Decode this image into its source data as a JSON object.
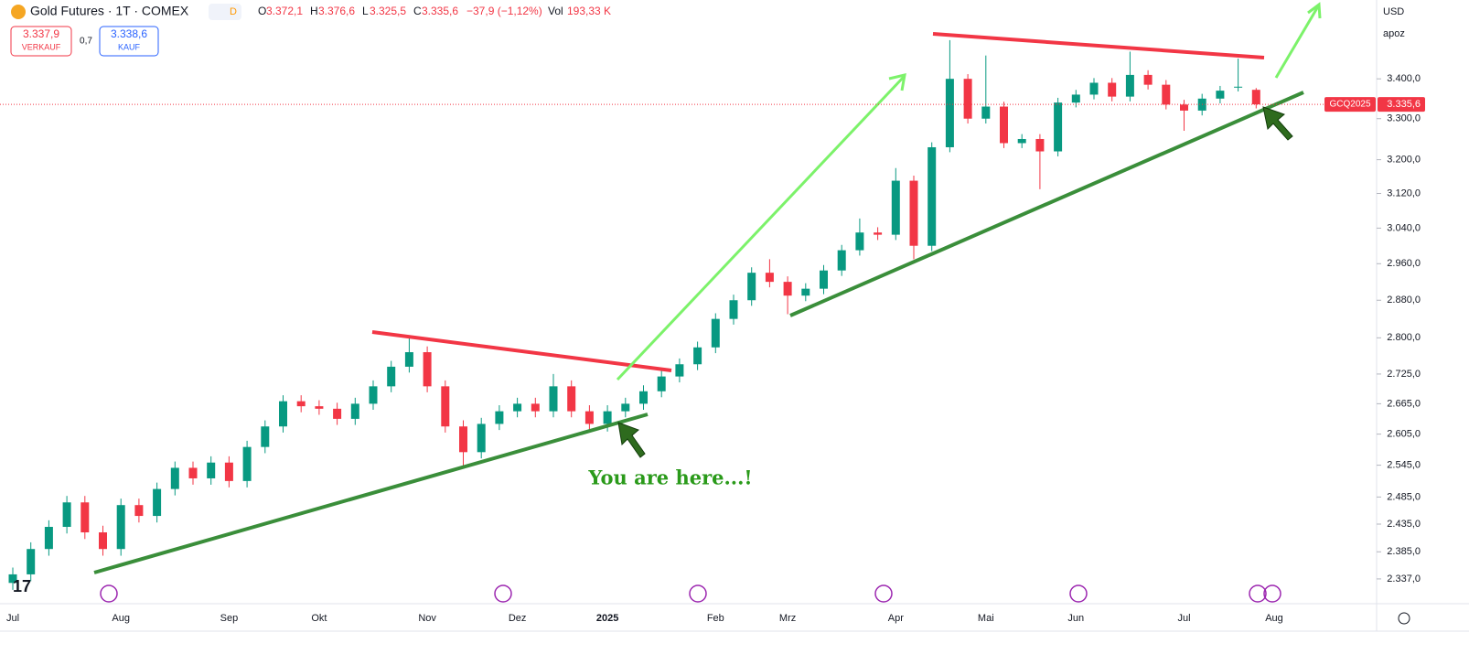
{
  "header": {
    "title": "Gold Futures · 1T · COMEX",
    "badge": "D",
    "o_label": "O",
    "o": "3.372,1",
    "h_label": "H",
    "h": "3.376,6",
    "l_label": "L",
    "l": "3.325,5",
    "c_label": "C",
    "c": "3.335,6",
    "change": "−37,9 (−1,12%)",
    "vol_label": "Vol",
    "vol": "193,33 K",
    "sell_price": "3.337,9",
    "sell_label": "VERKAUF",
    "spread": "0,7",
    "buy_price": "3.338,6",
    "buy_label": "KAUF",
    "currency": "USD",
    "scale_mode": "apoz",
    "symbol_tag": "GCQ2025",
    "last_price": "3.335,6"
  },
  "annotation": "You are here...!",
  "chart_data": {
    "type": "candlestick",
    "log": true,
    "up_color": "#089981",
    "down_color": "#f23645",
    "categories": [
      "Jul",
      null,
      null,
      null,
      null,
      null,
      "Aug",
      null,
      null,
      null,
      null,
      null,
      "Sep",
      null,
      null,
      null,
      null,
      "Okt",
      null,
      null,
      null,
      null,
      null,
      "Nov",
      null,
      null,
      null,
      null,
      "Dez",
      null,
      null,
      null,
      null,
      "2025",
      null,
      null,
      null,
      null,
      null,
      "Feb",
      null,
      null,
      null,
      "Mrz",
      null,
      null,
      null,
      null,
      null,
      "Apr",
      null,
      null,
      null,
      null,
      "Mai",
      null,
      null,
      null,
      null,
      "Jun",
      null,
      null,
      null,
      null,
      null,
      "Jul",
      null,
      null,
      null,
      null,
      "Aug"
    ],
    "open": [
      2330,
      2345,
      2390,
      2430,
      2475,
      2420,
      2390,
      2470,
      2450,
      2500,
      2540,
      2520,
      2550,
      2515,
      2580,
      2620,
      2670,
      2660,
      2655,
      2635,
      2665,
      2700,
      2740,
      2770,
      2700,
      2620,
      2570,
      2625,
      2650,
      2665,
      2650,
      2700,
      2650,
      2625,
      2650,
      2665,
      2690,
      2720,
      2745,
      2780,
      2840,
      2880,
      2940,
      2920,
      2890,
      2905,
      2945,
      2990,
      3030,
      3025,
      3150,
      3000,
      3230,
      3400,
      3300,
      3330,
      3240,
      3250,
      3220,
      3340,
      3360,
      3390,
      3355,
      3410,
      3385,
      3335,
      3320,
      3350,
      3380,
      3372.1,
      null
    ],
    "high": [
      2357,
      2402,
      2442,
      2487,
      2487,
      2432,
      2482,
      2482,
      2512,
      2552,
      2552,
      2562,
      2562,
      2592,
      2632,
      2682,
      2682,
      2672,
      2667,
      2677,
      2712,
      2752,
      2800,
      2782,
      2712,
      2632,
      2637,
      2662,
      2677,
      2677,
      2725,
      2712,
      2662,
      2662,
      2677,
      2702,
      2732,
      2757,
      2792,
      2852,
      2892,
      2952,
      2970,
      2932,
      2917,
      2957,
      3002,
      3062,
      3042,
      3180,
      3162,
      3242,
      3500,
      3412,
      3460,
      3342,
      3262,
      3262,
      3352,
      3372,
      3402,
      3402,
      3470,
      3422,
      3397,
      3347,
      3362,
      3382,
      3452,
      3376.6,
      null
    ],
    "low": [
      2318,
      2333,
      2378,
      2418,
      2408,
      2378,
      2378,
      2438,
      2438,
      2488,
      2508,
      2508,
      2503,
      2503,
      2568,
      2608,
      2648,
      2643,
      2623,
      2623,
      2653,
      2688,
      2728,
      2688,
      2608,
      2540,
      2558,
      2613,
      2638,
      2638,
      2638,
      2638,
      2613,
      2610,
      2638,
      2653,
      2678,
      2708,
      2733,
      2768,
      2828,
      2868,
      2908,
      2850,
      2878,
      2893,
      2933,
      2978,
      3013,
      3013,
      2970,
      2988,
      3218,
      3288,
      3288,
      3228,
      3228,
      3130,
      3208,
      3328,
      3348,
      3343,
      3343,
      3373,
      3323,
      3270,
      3308,
      3338,
      3368,
      3325.5,
      null
    ],
    "close": [
      2345,
      2390,
      2430,
      2475,
      2420,
      2390,
      2470,
      2450,
      2500,
      2540,
      2520,
      2550,
      2515,
      2580,
      2620,
      2670,
      2660,
      2655,
      2635,
      2665,
      2700,
      2740,
      2770,
      2700,
      2620,
      2570,
      2625,
      2650,
      2665,
      2650,
      2700,
      2650,
      2625,
      2650,
      2665,
      2690,
      2720,
      2745,
      2780,
      2840,
      2880,
      2940,
      2920,
      2890,
      2905,
      2945,
      2990,
      3030,
      3025,
      3150,
      3000,
      3230,
      3400,
      3300,
      3330,
      3240,
      3250,
      3220,
      3340,
      3360,
      3390,
      3355,
      3410,
      3385,
      3335,
      3320,
      3350,
      3370,
      3380,
      3335.6,
      null
    ],
    "ylim": [
      2294,
      3607
    ],
    "yticks": [
      {
        "value": 2337,
        "label": "2.337,0"
      },
      {
        "value": 2385,
        "label": "2.385,0"
      },
      {
        "value": 2435,
        "label": "2.435,0"
      },
      {
        "value": 2485,
        "label": "2.485,0"
      },
      {
        "value": 2545,
        "label": "2.545,0"
      },
      {
        "value": 2605,
        "label": "2.605,0"
      },
      {
        "value": 2665,
        "label": "2.665,0"
      },
      {
        "value": 2725,
        "label": "2.725,0"
      },
      {
        "value": 2800,
        "label": "2.800,0"
      },
      {
        "value": 2880,
        "label": "2.880,0"
      },
      {
        "value": 2960,
        "label": "2.960,0"
      },
      {
        "value": 3040,
        "label": "3.040,0"
      },
      {
        "value": 3120,
        "label": "3.120,0"
      },
      {
        "value": 3200,
        "label": "3.200,0"
      },
      {
        "value": 3300,
        "label": "3.300,0"
      },
      {
        "value": 3400,
        "label": "3.400,0"
      }
    ]
  }
}
